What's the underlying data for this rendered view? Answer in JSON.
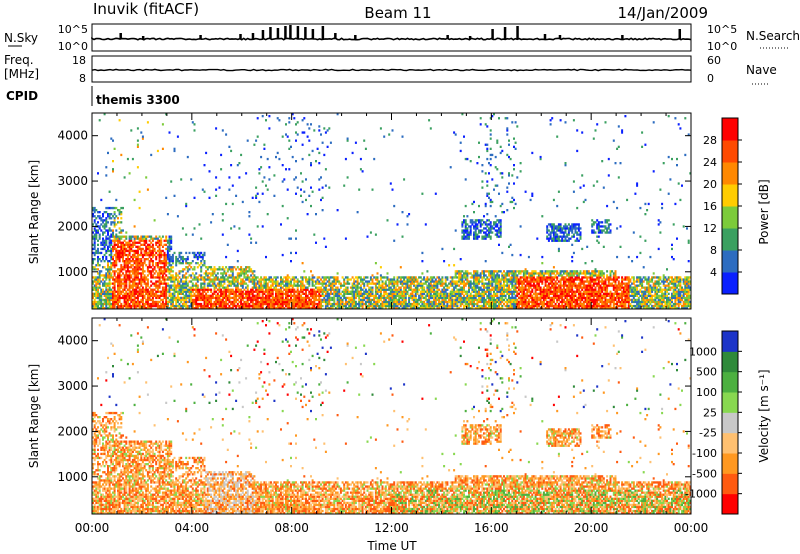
{
  "header": {
    "radar": "Inuvik (fitACF)",
    "beam": "Beam 11",
    "date": "14/Jan/2009"
  },
  "chart_data": [
    {
      "type": "line",
      "name": "noise-panel",
      "left_label": "N.Sky",
      "right_label": "N.Search",
      "left_ticks": [
        "10^5",
        "10^0"
      ],
      "right_ticks": [
        "10^5",
        "10^0"
      ],
      "scale": "log",
      "baseline_level": 1.0
    },
    {
      "type": "line",
      "name": "frequency-panel",
      "left_label_top": "Freq.",
      "left_label_bottom": "[MHz]",
      "right_label": "Nave",
      "left_ticks": [
        "18",
        "8"
      ],
      "right_ticks": [
        "60",
        "0"
      ],
      "freq_mhz": 11.3
    },
    {
      "type": "text",
      "name": "cpid-panel",
      "label": "CPID",
      "value": "themis 3300"
    },
    {
      "type": "heatmap",
      "name": "power-panel",
      "ylabel": "Slant Range [km]",
      "ylim": [
        180,
        4500
      ],
      "yticks": [
        "1000",
        "2000",
        "3000",
        "4000"
      ],
      "xlim_hours": [
        0,
        24
      ],
      "colorbar_title": "Power [dB]",
      "colorbar_ticks": [
        "28",
        "24",
        "20",
        "16",
        "12",
        "8",
        "4"
      ],
      "colorbar_colors": [
        "#ff0000",
        "#ff4a00",
        "#ff8800",
        "#ffcc00",
        "#7ccb3a",
        "#3aa060",
        "#2c6cc0",
        "#0a20ff"
      ]
    },
    {
      "type": "heatmap",
      "name": "velocity-panel",
      "ylabel": "Slant Range [km]",
      "ylim": [
        180,
        4500
      ],
      "yticks": [
        "1000",
        "2000",
        "3000",
        "4000"
      ],
      "xlim_hours": [
        0,
        24
      ],
      "xticks": [
        "00:00",
        "04:00",
        "08:00",
        "12:00",
        "16:00",
        "20:00",
        "00:00"
      ],
      "xlabel": "Time UT",
      "colorbar_title": "Velocity [m s⁻¹]",
      "colorbar_ticks": [
        "1000",
        "500",
        "100",
        "25",
        "-25",
        "-100",
        "-500",
        "-1000"
      ],
      "colorbar_colors": [
        "#1c34c8",
        "#2f8a3a",
        "#4cb040",
        "#88d850",
        "#c8c8c8",
        "#ffc070",
        "#ff9820",
        "#ff5a10",
        "#ff0000"
      ]
    }
  ]
}
